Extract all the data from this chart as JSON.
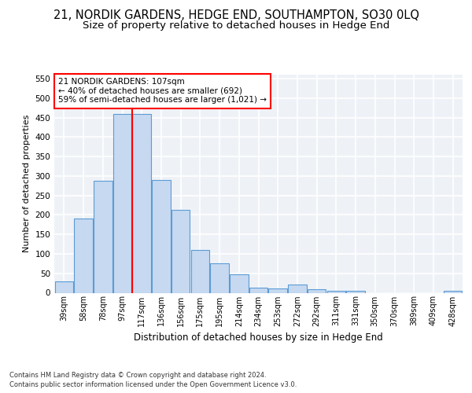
{
  "title": "21, NORDIK GARDENS, HEDGE END, SOUTHAMPTON, SO30 0LQ",
  "subtitle": "Size of property relative to detached houses in Hedge End",
  "xlabel": "Distribution of detached houses by size in Hedge End",
  "ylabel": "Number of detached properties",
  "footer_line1": "Contains HM Land Registry data © Crown copyright and database right 2024.",
  "footer_line2": "Contains public sector information licensed under the Open Government Licence v3.0.",
  "categories": [
    "39sqm",
    "58sqm",
    "78sqm",
    "97sqm",
    "117sqm",
    "136sqm",
    "156sqm",
    "175sqm",
    "195sqm",
    "214sqm",
    "234sqm",
    "253sqm",
    "272sqm",
    "292sqm",
    "311sqm",
    "331sqm",
    "350sqm",
    "370sqm",
    "389sqm",
    "409sqm",
    "428sqm"
  ],
  "values": [
    30,
    190,
    287,
    460,
    460,
    290,
    213,
    109,
    75,
    47,
    13,
    12,
    22,
    10,
    5,
    5,
    0,
    0,
    0,
    0,
    5
  ],
  "bar_color": "#c6d9f0",
  "bar_edge_color": "#5b9bd5",
  "red_line_x": 3.5,
  "annotation_title": "21 NORDIK GARDENS: 107sqm",
  "annotation_line1": "← 40% of detached houses are smaller (692)",
  "annotation_line2": "59% of semi-detached houses are larger (1,021) →",
  "ylim": [
    0,
    560
  ],
  "yticks": [
    0,
    50,
    100,
    150,
    200,
    250,
    300,
    350,
    400,
    450,
    500,
    550
  ],
  "bg_color": "#eef2f7",
  "grid_color": "#ffffff",
  "title_fontsize": 10.5,
  "subtitle_fontsize": 9.5
}
